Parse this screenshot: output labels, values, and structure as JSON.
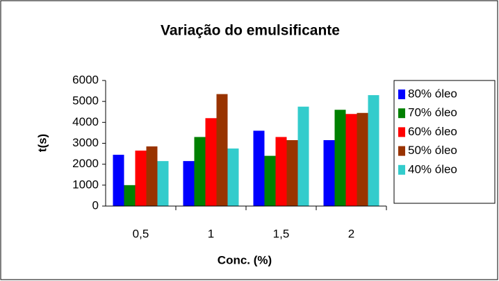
{
  "chart_data": {
    "type": "bar",
    "title": "Variação do emulsificante",
    "x_label": "Conc. (%)",
    "y_label": "t(s)",
    "categories": [
      "0,5",
      "1",
      "1,5",
      "2"
    ],
    "series": [
      {
        "name": "80% óleo",
        "color": "#0000ff",
        "values": [
          2450,
          2150,
          3600,
          3150
        ]
      },
      {
        "name": "70% óleo",
        "color": "#008000",
        "values": [
          1000,
          3300,
          2400,
          4600
        ]
      },
      {
        "name": "60% óleo",
        "color": "#ff0000",
        "values": [
          2650,
          4200,
          3300,
          4400
        ]
      },
      {
        "name": "50% óleo",
        "color": "#993300",
        "values": [
          2850,
          5350,
          3150,
          4450
        ]
      },
      {
        "name": "40% óleo",
        "color": "#33cccc",
        "values": [
          2150,
          2750,
          4750,
          5300
        ]
      }
    ],
    "ylim": [
      0,
      6000
    ],
    "yticks": [
      0,
      1000,
      2000,
      3000,
      4000,
      5000,
      6000
    ],
    "grid": false,
    "legend": "right"
  }
}
